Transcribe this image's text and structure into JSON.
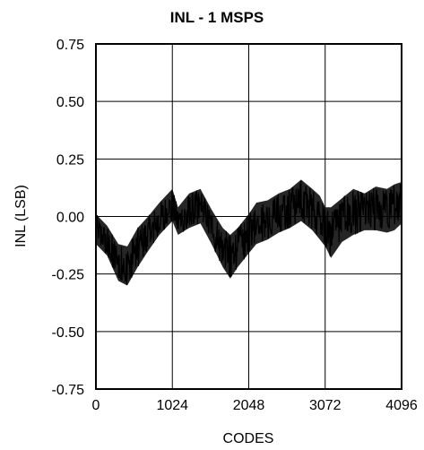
{
  "chart_data": {
    "type": "line",
    "title": "INL - 1 MSPS",
    "xlabel": "CODES",
    "ylabel": "INL (LSB)",
    "xlim": [
      0,
      4096
    ],
    "ylim": [
      -0.75,
      0.75
    ],
    "grid": true,
    "x_ticks": [
      "0",
      "1024",
      "2048",
      "3072",
      "4096"
    ],
    "y_ticks": [
      "0.75",
      "0.50",
      "0.25",
      "0.00",
      "-0.25",
      "-0.50",
      "-0.75"
    ],
    "series": [
      {
        "color": "#000000",
        "x": [
          0,
          150,
          300,
          420,
          560,
          700,
          850,
          1024,
          1100,
          1250,
          1400,
          1550,
          1700,
          1800,
          1900,
          2048,
          2150,
          2300,
          2450,
          2600,
          2750,
          2900,
          3000,
          3072,
          3150,
          3300,
          3450,
          3600,
          3750,
          3900,
          4000,
          4096
        ],
        "y_mid": [
          -0.06,
          -0.12,
          -0.2,
          -0.22,
          -0.13,
          -0.08,
          -0.02,
          0.05,
          -0.02,
          0.02,
          0.04,
          -0.05,
          -0.13,
          -0.17,
          -0.13,
          -0.08,
          -0.03,
          -0.01,
          0.02,
          0.05,
          0.08,
          0.04,
          0.0,
          -0.05,
          -0.04,
          0.0,
          0.04,
          0.03,
          0.05,
          0.04,
          0.05,
          0.06
        ],
        "y_min": [
          -0.12,
          -0.17,
          -0.28,
          -0.3,
          -0.22,
          -0.15,
          -0.08,
          -0.02,
          -0.08,
          -0.05,
          -0.03,
          -0.12,
          -0.22,
          -0.27,
          -0.22,
          -0.16,
          -0.12,
          -0.1,
          -0.07,
          -0.05,
          -0.02,
          -0.06,
          -0.1,
          -0.13,
          -0.18,
          -0.11,
          -0.08,
          -0.06,
          -0.06,
          -0.07,
          -0.06,
          -0.03
        ],
        "y_max": [
          0.01,
          -0.04,
          -0.12,
          -0.13,
          -0.05,
          0.0,
          0.06,
          0.12,
          0.04,
          0.1,
          0.12,
          0.03,
          -0.05,
          -0.08,
          -0.05,
          0.01,
          0.06,
          0.07,
          0.1,
          0.12,
          0.16,
          0.12,
          0.09,
          0.04,
          0.04,
          0.08,
          0.12,
          0.1,
          0.13,
          0.12,
          0.14,
          0.15
        ]
      }
    ]
  }
}
